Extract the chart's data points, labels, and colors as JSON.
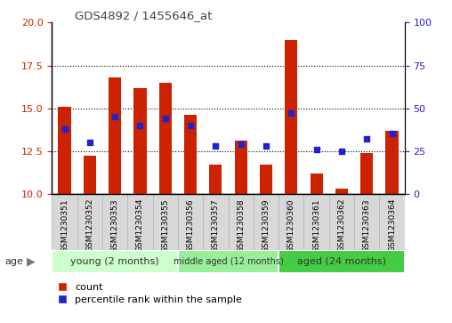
{
  "title": "GDS4892 / 1455646_at",
  "samples": [
    "GSM1230351",
    "GSM1230352",
    "GSM1230353",
    "GSM1230354",
    "GSM1230355",
    "GSM1230356",
    "GSM1230357",
    "GSM1230358",
    "GSM1230359",
    "GSM1230360",
    "GSM1230361",
    "GSM1230362",
    "GSM1230363",
    "GSM1230364"
  ],
  "counts": [
    15.1,
    12.2,
    16.8,
    16.2,
    16.5,
    14.6,
    11.7,
    13.1,
    11.7,
    19.0,
    11.2,
    10.3,
    12.4,
    13.7
  ],
  "percentiles": [
    38,
    30,
    45,
    40,
    44,
    40,
    28,
    29,
    28,
    47,
    26,
    25,
    32,
    35
  ],
  "ylim_left": [
    10,
    20
  ],
  "ylim_right": [
    0,
    100
  ],
  "yticks_left": [
    10,
    12.5,
    15,
    17.5,
    20
  ],
  "yticks_right": [
    0,
    25,
    50,
    75,
    100
  ],
  "bar_color": "#cc2200",
  "dot_color": "#2222cc",
  "bar_bottom": 10,
  "bar_width": 0.5,
  "groups": [
    {
      "label": "young (2 months)",
      "start": 0,
      "end": 5,
      "color": "#ccffcc"
    },
    {
      "label": "middle aged (12 months)",
      "start": 5,
      "end": 9,
      "color": "#99ee99"
    },
    {
      "label": "aged (24 months)",
      "start": 9,
      "end": 14,
      "color": "#44cc44"
    }
  ],
  "age_label": "age",
  "legend_count_label": "count",
  "legend_pct_label": "percentile rank within the sample",
  "tick_label_color_left": "#cc2200",
  "tick_label_color_right": "#2222cc",
  "sample_box_color": "#d8d8d8",
  "sample_box_edge": "#bbbbbb",
  "title_color": "#444444",
  "dot_size": 20,
  "ytick_fontsize": 8,
  "xtick_fontsize": 6.5
}
